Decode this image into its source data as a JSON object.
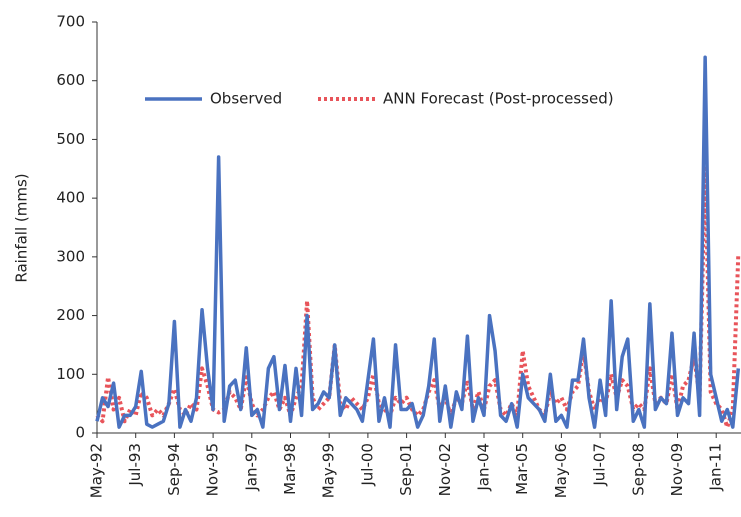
{
  "chart_data": {
    "type": "line",
    "y_label": "Rainfall (mms)",
    "categories": [
      "May-92",
      null,
      null,
      null,
      null,
      null,
      null,
      "Jul-93",
      null,
      null,
      null,
      null,
      null,
      null,
      "Sep-94",
      null,
      null,
      null,
      null,
      null,
      null,
      "Nov-95",
      null,
      null,
      null,
      null,
      null,
      null,
      "Jan-97",
      null,
      null,
      null,
      null,
      null,
      null,
      "Mar-98",
      null,
      null,
      null,
      null,
      null,
      null,
      "May-99",
      null,
      null,
      null,
      null,
      null,
      null,
      "Jul-00",
      null,
      null,
      null,
      null,
      null,
      null,
      "Sep-01",
      null,
      null,
      null,
      null,
      null,
      null,
      "Nov-02",
      null,
      null,
      null,
      null,
      null,
      null,
      "Jan-04",
      null,
      null,
      null,
      null,
      null,
      null,
      "Mar-05",
      null,
      null,
      null,
      null,
      null,
      null,
      "May-06",
      null,
      null,
      null,
      null,
      null,
      null,
      "Jul-07",
      null,
      null,
      null,
      null,
      null,
      null,
      "Sep-08",
      null,
      null,
      null,
      null,
      null,
      null,
      "Nov-09",
      null,
      null,
      null,
      null,
      null,
      null,
      "Jan-11",
      null,
      null,
      null,
      null
    ],
    "series": [
      {
        "name": "Observed",
        "color": "#4a72c0",
        "style": "solid",
        "values": [
          20,
          60,
          45,
          85,
          10,
          30,
          30,
          45,
          105,
          15,
          10,
          15,
          20,
          50,
          190,
          10,
          40,
          20,
          60,
          210,
          110,
          40,
          470,
          20,
          80,
          90,
          40,
          145,
          30,
          40,
          10,
          110,
          130,
          40,
          115,
          20,
          110,
          30,
          200,
          40,
          50,
          70,
          60,
          150,
          30,
          60,
          50,
          40,
          20,
          90,
          160,
          20,
          60,
          10,
          150,
          40,
          40,
          50,
          10,
          30,
          80,
          160,
          20,
          80,
          10,
          70,
          40,
          165,
          20,
          60,
          30,
          200,
          140,
          30,
          20,
          50,
          10,
          100,
          60,
          50,
          40,
          20,
          100,
          20,
          30,
          10,
          90,
          90,
          160,
          60,
          10,
          90,
          30,
          225,
          40,
          130,
          160,
          20,
          40,
          10,
          220,
          40,
          60,
          50,
          170,
          30,
          60,
          50,
          170,
          30,
          640,
          100,
          60,
          20,
          40,
          10,
          110
        ]
      },
      {
        "name": "ANN Forecast (Post-processed)",
        "color": "#e8545a",
        "style": "dotted",
        "values": [
          30,
          20,
          95,
          40,
          60,
          20,
          40,
          30,
          70,
          60,
          30,
          40,
          30,
          50,
          75,
          40,
          30,
          50,
          40,
          110,
          80,
          40,
          35,
          40,
          70,
          60,
          40,
          95,
          50,
          30,
          40,
          60,
          70,
          40,
          60,
          30,
          60,
          80,
          225,
          60,
          40,
          50,
          60,
          150,
          50,
          40,
          60,
          50,
          40,
          60,
          100,
          50,
          40,
          30,
          60,
          50,
          60,
          40,
          30,
          40,
          70,
          90,
          40,
          60,
          30,
          60,
          50,
          90,
          40,
          70,
          40,
          80,
          90,
          40,
          30,
          50,
          30,
          140,
          80,
          60,
          40,
          30,
          70,
          50,
          60,
          40,
          70,
          80,
          140,
          70,
          40,
          60,
          50,
          100,
          60,
          90,
          80,
          40,
          50,
          40,
          110,
          50,
          60,
          50,
          100,
          40,
          80,
          90,
          130,
          60,
          450,
          70,
          50,
          40,
          10,
          40,
          305
        ]
      }
    ],
    "ylim": [
      0,
      700
    ],
    "yticks": [
      0,
      100,
      200,
      300,
      400,
      500,
      600,
      700
    ]
  }
}
